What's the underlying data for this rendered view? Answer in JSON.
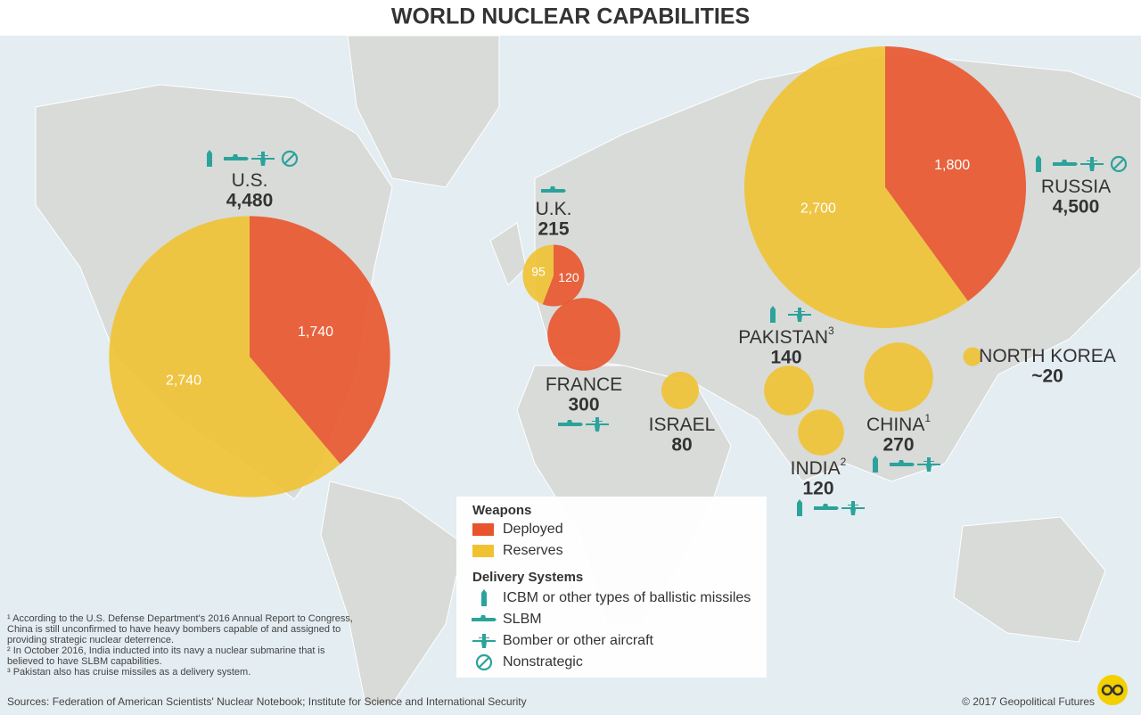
{
  "title": "WORLD NUCLEAR CAPABILITIES",
  "legend": {
    "weapons_title": "Weapons",
    "weapons": [
      {
        "label": "Deployed",
        "color": "#e8542b"
      },
      {
        "label": "Reserves",
        "color": "#f0c232"
      }
    ],
    "delivery_title": "Delivery Systems",
    "delivery": [
      "ICBM or other types of ballistic missiles",
      "SLBM",
      "Bomber or other aircraft",
      "Nonstrategic"
    ]
  },
  "countries": [
    {
      "name": "U.S.",
      "total": {
        "value": 4480,
        "label": "4,480"
      },
      "segments": [
        {
          "kind": "Deployed",
          "value": 1740,
          "label": "1,740"
        },
        {
          "kind": "Reserves",
          "value": 2740,
          "label": "2,740"
        }
      ]
    },
    {
      "name": "U.K.",
      "total": 215,
      "segments": [
        {
          "kind": "Deployed",
          "value": 120,
          "label": "120"
        },
        {
          "kind": "Reserves",
          "value": 95,
          "label": "95"
        }
      ]
    },
    {
      "name": "FRANCE",
      "total": 300,
      "segments": [
        {
          "kind": "Deployed",
          "value": 300
        }
      ]
    },
    {
      "name": "ISRAEL",
      "total": 80,
      "segments": [
        {
          "kind": "Reserves",
          "value": 80
        }
      ]
    },
    {
      "name": "PAKISTAN",
      "note": "3",
      "total": 140,
      "segments": [
        {
          "kind": "Reserves",
          "value": 140
        }
      ]
    },
    {
      "name": "INDIA",
      "note": "2",
      "total": 120,
      "segments": [
        {
          "kind": "Reserves",
          "value": 120
        }
      ]
    },
    {
      "name": "CHINA",
      "note": "1",
      "total": 270,
      "segments": [
        {
          "kind": "Reserves",
          "value": 270
        }
      ]
    },
    {
      "name": "NORTH KOREA",
      "total": {
        "value": 20,
        "label": "~20"
      },
      "segments": [
        {
          "kind": "Reserves",
          "value": 20
        }
      ]
    },
    {
      "name": "RUSSIA",
      "total": {
        "value": 4500,
        "label": "4,500"
      },
      "segments": [
        {
          "kind": "Deployed",
          "value": 1800,
          "label": "1,800"
        },
        {
          "kind": "Reserves",
          "value": 2700,
          "label": "2,700"
        }
      ]
    }
  ],
  "footnotes": [
    "¹ According to the U.S. Defense Department's 2016 Annual Report to Congress, China is still unconfirmed to have heavy bombers capable of and assigned to providing strategic nuclear deterrence.",
    "² In October 2016, India inducted into its navy a nuclear submarine that is believed to have SLBM capabilities.",
    "³ Pakistan also has cruise missiles as a delivery system."
  ],
  "sources": "Sources: Federation of American Scientists' Nuclear Notebook; Institute for Science and International Security",
  "copyright": "© 2017 Geopolitical Futures"
}
